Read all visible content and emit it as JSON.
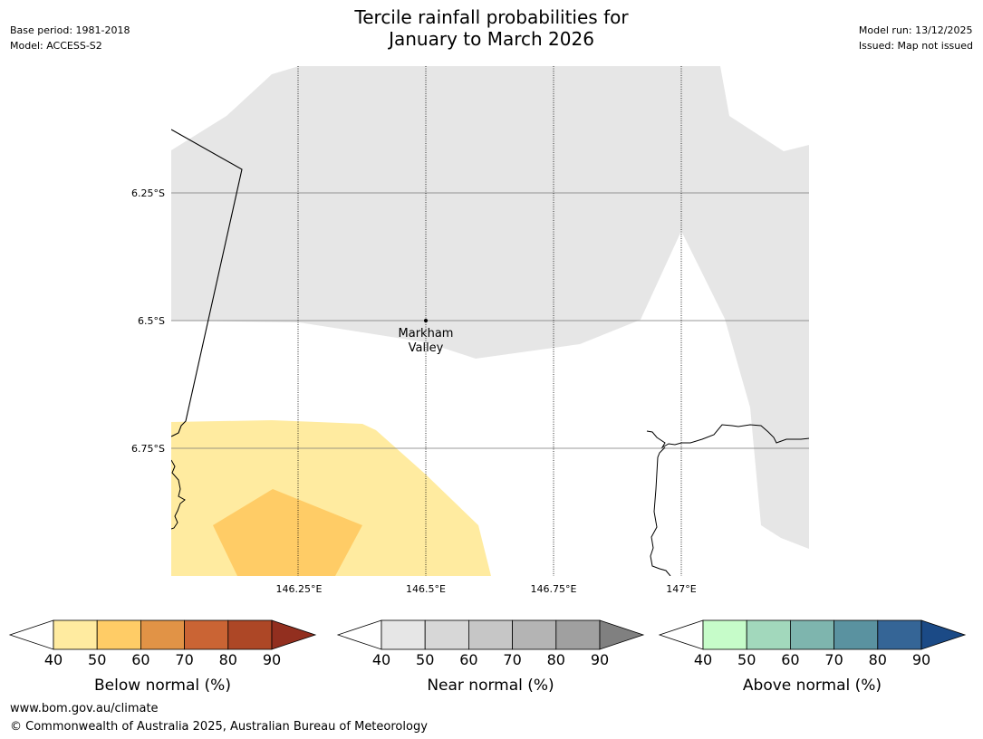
{
  "header": {
    "title_line1": "Tercile rainfall probabilities for",
    "title_line2": "January to March 2026",
    "base_period": "Base period: 1981-2018",
    "model": "Model: ACCESS-S2",
    "model_run": "Model run: 13/12/2025",
    "issued": "Issued: Map not issued"
  },
  "map": {
    "lat_labels": [
      "6.25°S",
      "6.5°S",
      "6.75°S"
    ],
    "lon_labels": [
      "146.25°E",
      "146.5°E",
      "146.75°E",
      "147°E"
    ],
    "place": {
      "name_line1": "Markham",
      "name_line2": "Valley",
      "lat": -6.5,
      "lon": 146.5
    },
    "regions": [
      {
        "category": "near_normal",
        "band": "40-50",
        "color": "#e6e6e6"
      },
      {
        "category": "below_normal",
        "band": "40-50",
        "color": "#ffeba0"
      },
      {
        "category": "below_normal",
        "band": "50-60",
        "color": "#ffcc66"
      }
    ]
  },
  "colorbars": [
    {
      "title": "Below normal (%)",
      "ticks": [
        "40",
        "50",
        "60",
        "70",
        "80",
        "90"
      ],
      "under_color": "#ffffff",
      "colors": [
        "#ffeba0",
        "#ffcc66",
        "#e19346",
        "#ca6434",
        "#ad4726"
      ],
      "over_color": "#922f1f"
    },
    {
      "title": "Near normal (%)",
      "ticks": [
        "40",
        "50",
        "60",
        "70",
        "80",
        "90"
      ],
      "under_color": "#ffffff",
      "colors": [
        "#e6e6e6",
        "#d7d7d7",
        "#c6c6c6",
        "#b4b4b4",
        "#a0a0a0"
      ],
      "over_color": "#808080"
    },
    {
      "title": "Above normal (%)",
      "ticks": [
        "40",
        "50",
        "60",
        "70",
        "80",
        "90"
      ],
      "under_color": "#ffffff",
      "colors": [
        "#c6fcc9",
        "#a2d8bc",
        "#7eb5ae",
        "#5a92a0",
        "#356596"
      ],
      "over_color": "#1b4a86"
    }
  ],
  "footer": {
    "url": "www.bom.gov.au/climate",
    "copyright": "© Commonwealth of Australia 2025, Australian Bureau of Meteorology"
  }
}
